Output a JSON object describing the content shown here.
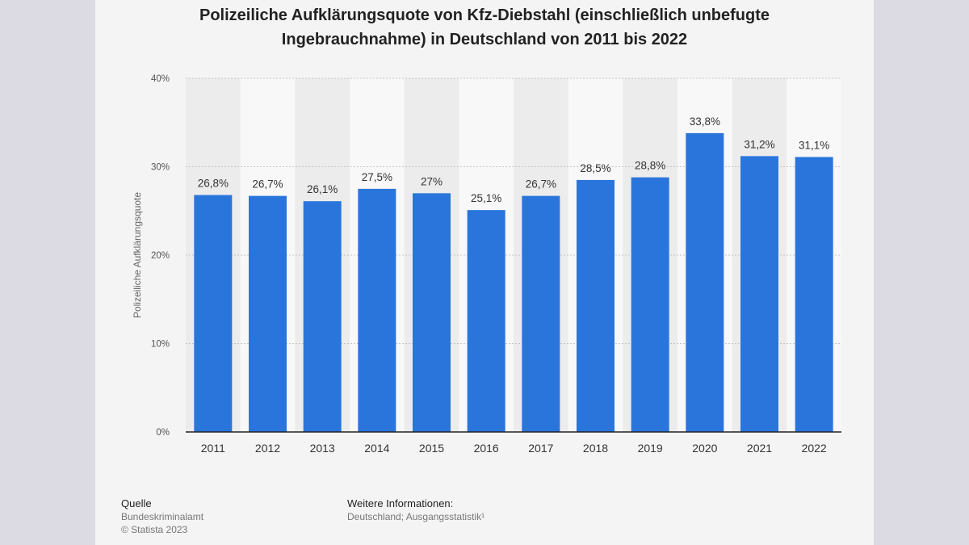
{
  "title_line1": "Polizeiliche Aufklärungsquote von Kfz-Diebstahl (einschließlich unbefugte",
  "title_line2": "Ingebrauchnahme) in Deutschland von 2011 bis 2022",
  "colors": {
    "bar": "#2a75dc",
    "background": "#f4f4f4",
    "page": "#dcdae3"
  },
  "chart_data": {
    "type": "bar",
    "title": "Polizeiliche Aufklärungsquote von Kfz-Diebstahl (einschließlich unbefugte Ingebrauchnahme) in Deutschland von 2011 bis 2022",
    "xlabel": "",
    "ylabel": "Polizeiliche Aufklärungsquote",
    "ylim": [
      0,
      40
    ],
    "yticks": [
      0,
      10,
      20,
      30,
      40
    ],
    "ytick_labels": [
      "0%",
      "10%",
      "20%",
      "30%",
      "40%"
    ],
    "grid": true,
    "categories": [
      "2011",
      "2012",
      "2013",
      "2014",
      "2015",
      "2016",
      "2017",
      "2018",
      "2019",
      "2020",
      "2021",
      "2022"
    ],
    "values": [
      26.8,
      26.7,
      26.1,
      27.5,
      27,
      25.1,
      26.7,
      28.5,
      28.8,
      33.8,
      31.2,
      31.1
    ],
    "value_labels": [
      "26,8%",
      "26,7%",
      "26,1%",
      "27,5%",
      "27%",
      "25,1%",
      "26,7%",
      "28,5%",
      "28,8%",
      "33,8%",
      "31,2%",
      "31,1%"
    ]
  },
  "footer": {
    "source_heading": "Quelle",
    "source_line1": "Bundeskriminalamt",
    "source_line2": "© Statista 2023",
    "info_heading": "Weitere Informationen:",
    "info_line1": "Deutschland; Ausgangsstatistik¹"
  }
}
